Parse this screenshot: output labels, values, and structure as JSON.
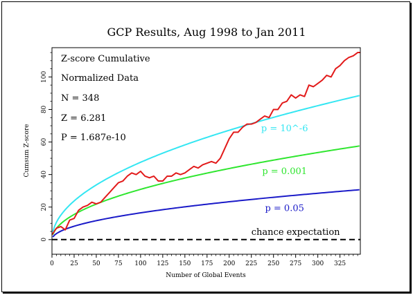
{
  "chart_data": {
    "type": "line",
    "title": "GCP Results, Aug 1998 to Jan 2011",
    "xlabel": "Number of Global Events",
    "ylabel": "Cumsum Z-score",
    "xlim": [
      0,
      348
    ],
    "ylim": [
      -9,
      118
    ],
    "x_ticks": [
      0,
      25,
      50,
      75,
      100,
      125,
      150,
      175,
      200,
      225,
      250,
      275,
      300,
      325
    ],
    "y_ticks": [
      0,
      20,
      40,
      60,
      80,
      100
    ],
    "grid": false,
    "stats_text": [
      "Z-score Cumulative",
      "Normalized Data",
      "N = 348",
      "Z = 6.281",
      "P = 1.687e-10"
    ],
    "series": [
      {
        "name": "p = 10^-6",
        "kind": "probability-envelope",
        "color": "#33e6f2",
        "z_multiplier": 4.753,
        "label_at_x": 250
      },
      {
        "name": "p = 0.001",
        "kind": "probability-envelope",
        "color": "#2ee62e",
        "z_multiplier": 3.09,
        "label_at_x": 250
      },
      {
        "name": "p = 0.05",
        "kind": "probability-envelope",
        "color": "#1a1ac8",
        "z_multiplier": 1.645,
        "label_at_x": 250
      },
      {
        "name": "chance expectation",
        "kind": "baseline",
        "color": "#000000",
        "value": 0
      },
      {
        "name": "Cumulative Z-score",
        "kind": "data",
        "color": "#e21a1a",
        "x": [
          0,
          5,
          10,
          15,
          20,
          25,
          30,
          35,
          40,
          45,
          50,
          55,
          60,
          65,
          70,
          75,
          80,
          85,
          90,
          95,
          100,
          105,
          110,
          115,
          120,
          125,
          130,
          135,
          140,
          145,
          150,
          155,
          160,
          165,
          170,
          175,
          180,
          185,
          190,
          195,
          200,
          205,
          210,
          215,
          220,
          225,
          230,
          235,
          240,
          245,
          250,
          255,
          260,
          265,
          270,
          275,
          280,
          285,
          290,
          295,
          300,
          305,
          310,
          315,
          320,
          325,
          330,
          335,
          340,
          345,
          348
        ],
        "y": [
          3,
          7,
          8,
          6,
          12,
          13,
          18,
          20,
          21,
          23,
          22,
          23,
          26,
          29,
          32,
          35,
          36,
          39,
          41,
          40,
          42,
          39,
          38,
          39,
          36,
          36,
          39,
          39,
          41,
          40,
          41,
          43,
          45,
          44,
          46,
          47,
          48,
          47,
          50,
          56,
          62,
          66,
          66,
          69,
          71,
          71,
          72,
          74,
          76,
          75,
          80,
          80,
          84,
          85,
          89,
          87,
          89,
          88,
          95,
          94,
          96,
          98,
          101,
          100,
          105,
          107,
          110,
          112,
          113,
          115,
          115
        ]
      }
    ]
  }
}
